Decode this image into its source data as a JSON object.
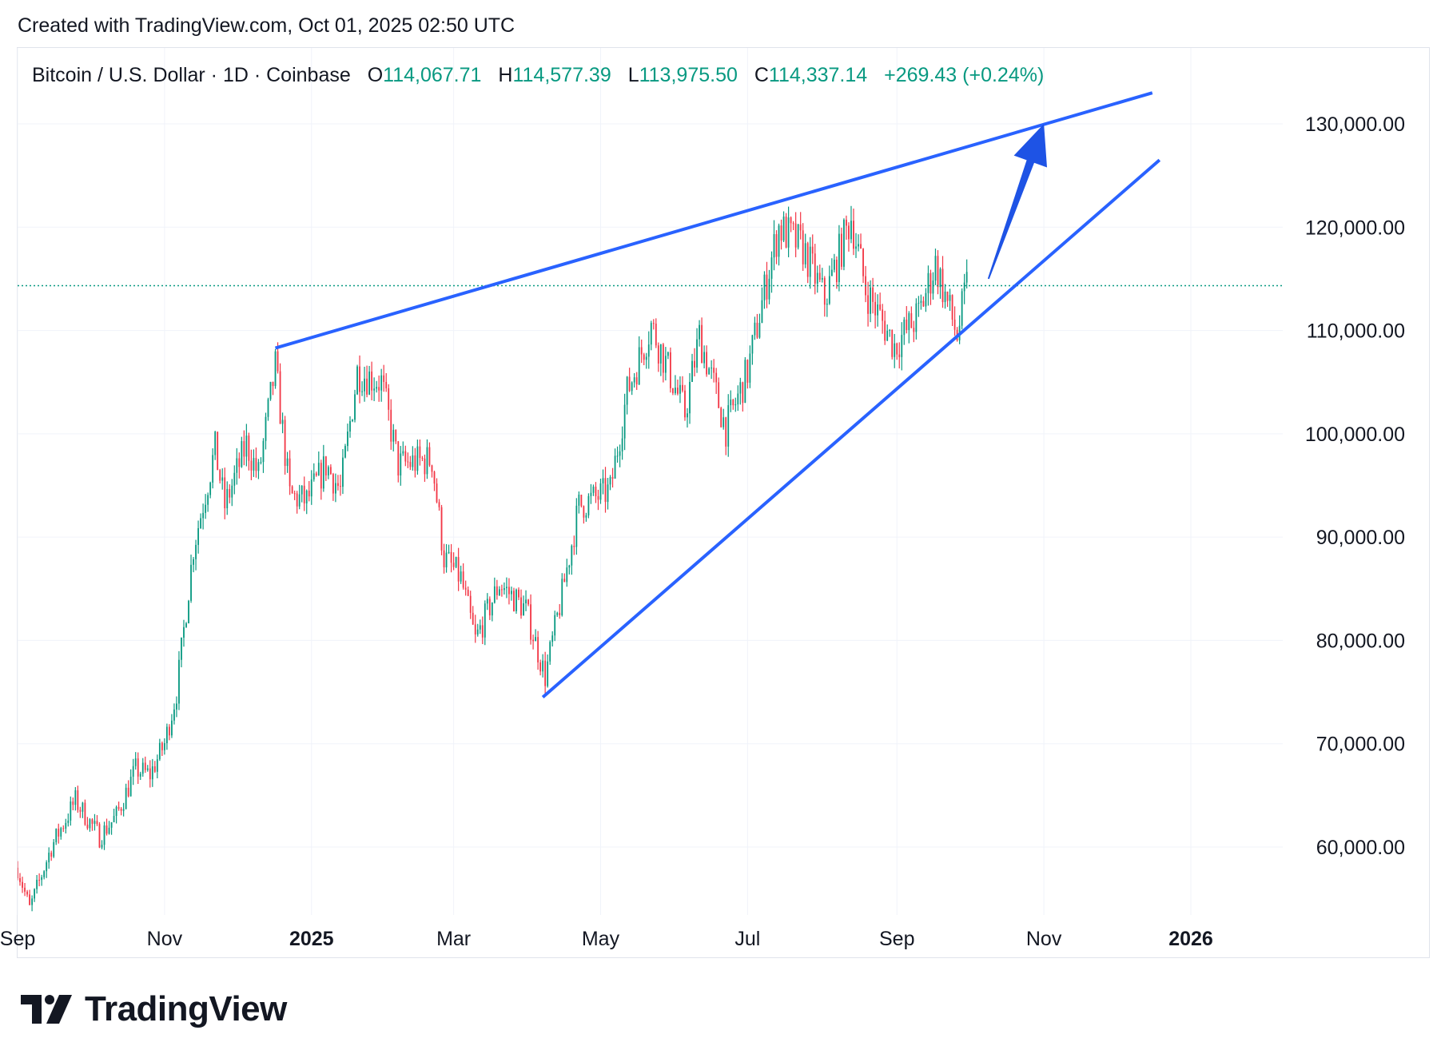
{
  "header": {
    "created_with": "Created with TradingView.com, Oct 01, 2025 02:50 UTC"
  },
  "legend": {
    "symbol": "Bitcoin / U.S. Dollar · 1D · Coinbase",
    "open_label": "O",
    "open": "114,067.71",
    "high_label": "H",
    "high": "114,577.39",
    "low_label": "L",
    "low": "113,975.50",
    "close_label": "C",
    "close": "114,337.14",
    "change": "+269.43 (+0.24%)"
  },
  "branding": {
    "logo_text": "TradingView"
  },
  "colors": {
    "up": "#089981",
    "down": "#f23645",
    "trendline": "#2962ff",
    "arrow": "#1e53e5",
    "grid": "#f0f3fa",
    "axis_text": "#131722"
  },
  "chart_data": {
    "type": "candlestick",
    "symbol": "BTCUSD",
    "interval": "1D",
    "exchange": "Coinbase",
    "x_axis": {
      "ticks": [
        {
          "label": "Sep",
          "date": "2024-09-01",
          "bold": false
        },
        {
          "label": "Nov",
          "date": "2024-11-01",
          "bold": false
        },
        {
          "label": "2025",
          "date": "2025-01-01",
          "bold": true
        },
        {
          "label": "Mar",
          "date": "2025-03-01",
          "bold": false
        },
        {
          "label": "May",
          "date": "2025-05-01",
          "bold": false
        },
        {
          "label": "Jul",
          "date": "2025-07-01",
          "bold": false
        },
        {
          "label": "Sep",
          "date": "2025-09-01",
          "bold": false
        },
        {
          "label": "Nov",
          "date": "2025-11-01",
          "bold": false
        },
        {
          "label": "2026",
          "date": "2026-01-01",
          "bold": true
        }
      ]
    },
    "y_axis": {
      "ticks": [
        "60,000.00",
        "70,000.00",
        "80,000.00",
        "90,000.00",
        "100,000.00",
        "110,000.00",
        "120,000.00",
        "130,000.00"
      ],
      "tick_values": [
        60000,
        70000,
        80000,
        90000,
        100000,
        110000,
        120000,
        130000
      ],
      "range": [
        53000,
        135000
      ]
    },
    "last_price": 114337.14,
    "price_path": [
      [
        "2024-09-01",
        58000
      ],
      [
        "2024-09-06",
        54000
      ],
      [
        "2024-09-15",
        60000
      ],
      [
        "2024-09-25",
        64500
      ],
      [
        "2024-10-05",
        61000
      ],
      [
        "2024-10-12",
        63000
      ],
      [
        "2024-10-20",
        67500
      ],
      [
        "2024-10-26",
        67000
      ],
      [
        "2024-11-01",
        70000
      ],
      [
        "2024-11-06",
        75000
      ],
      [
        "2024-11-13",
        89000
      ],
      [
        "2024-11-22",
        98500
      ],
      [
        "2024-11-26",
        93000
      ],
      [
        "2024-12-05",
        99000
      ],
      [
        "2024-12-10",
        96000
      ],
      [
        "2024-12-17",
        106500
      ],
      [
        "2024-12-23",
        94000
      ],
      [
        "2024-12-30",
        93500
      ],
      [
        "2025-01-07",
        97000
      ],
      [
        "2025-01-13",
        94500
      ],
      [
        "2025-01-20",
        106000
      ],
      [
        "2025-01-30",
        105000
      ],
      [
        "2025-02-06",
        97000
      ],
      [
        "2025-02-20",
        97500
      ],
      [
        "2025-02-25",
        88000
      ],
      [
        "2025-03-04",
        86000
      ],
      [
        "2025-03-10",
        80000
      ],
      [
        "2025-03-20",
        85500
      ],
      [
        "2025-03-31",
        83000
      ],
      [
        "2025-04-08",
        76500
      ],
      [
        "2025-04-15",
        84500
      ],
      [
        "2025-04-22",
        93000
      ],
      [
        "2025-05-05",
        94500
      ],
      [
        "2025-05-12",
        104000
      ],
      [
        "2025-05-22",
        110500
      ],
      [
        "2025-06-05",
        102000
      ],
      [
        "2025-06-11",
        109500
      ],
      [
        "2025-06-22",
        100500
      ],
      [
        "2025-07-01",
        106000
      ],
      [
        "2025-07-10",
        116000
      ],
      [
        "2025-07-14",
        120000
      ],
      [
        "2025-07-24",
        118000
      ],
      [
        "2025-08-02",
        113000
      ],
      [
        "2025-08-13",
        121000
      ],
      [
        "2025-08-19",
        114000
      ],
      [
        "2025-08-31",
        108500
      ],
      [
        "2025-09-10",
        111500
      ],
      [
        "2025-09-17",
        116500
      ],
      [
        "2025-09-26",
        109500
      ],
      [
        "2025-09-30",
        114337
      ]
    ],
    "drawings": {
      "upper_trendline": {
        "from": [
          "2024-12-17",
          108300
        ],
        "to": [
          "2025-12-16",
          133000
        ]
      },
      "lower_trendline": {
        "from": [
          "2025-04-07",
          74500
        ],
        "to": [
          "2025-12-19",
          126500
        ]
      },
      "arrow": {
        "from": [
          "2025-10-09",
          115000
        ],
        "to": [
          "2025-11-01",
          130000
        ]
      }
    }
  }
}
